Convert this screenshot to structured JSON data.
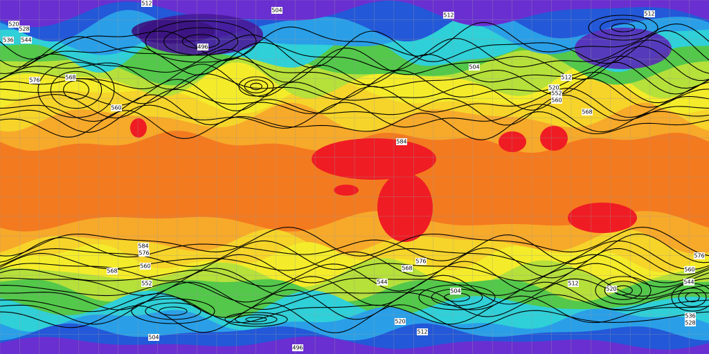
{
  "map": {
    "contour_labels": [
      512,
      504,
      512,
      512,
      520,
      528,
      536,
      544,
      496,
      568,
      576,
      560,
      504,
      512,
      520,
      552,
      560,
      568,
      584,
      584,
      576,
      568,
      560,
      552,
      576,
      568,
      544,
      504,
      512,
      520,
      536,
      528,
      576,
      560,
      544,
      504,
      496,
      512,
      520
    ]
  }
}
